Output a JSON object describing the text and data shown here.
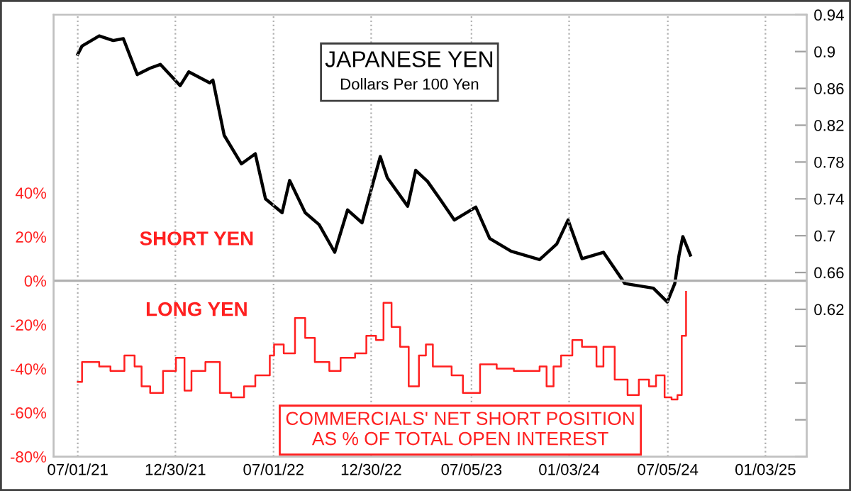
{
  "chart_data": {
    "type": "line",
    "title": "JAPANESE YEN",
    "subtitle": "Dollars Per 100 Yen",
    "annotations": [
      "SHORT YEN",
      "LONG YEN",
      "COMMERCIALS' NET SHORT POSITION\nAS % OF TOTAL OPEN INTEREST"
    ],
    "series": [
      {
        "color": "#000000",
        "axis": "y2",
        "x": [
          "2021-07-01",
          "2021-07-09",
          "2021-08-10",
          "2021-09-05",
          "2021-09-24",
          "2021-10-20",
          "2021-11-13",
          "2021-12-02",
          "2022-01-08",
          "2022-01-24",
          "2022-03-04",
          "2022-03-10",
          "2022-03-31",
          "2022-05-02",
          "2022-05-28",
          "2022-06-16",
          "2022-07-17",
          "2022-07-31",
          "2022-08-29",
          "2022-09-24",
          "2022-10-23",
          "2022-11-16",
          "2022-12-13",
          "2023-01-16",
          "2023-01-29",
          "2023-03-08",
          "2023-03-23",
          "2023-04-14",
          "2023-05-07",
          "2023-06-03",
          "2023-07-13",
          "2023-08-08",
          "2023-09-17",
          "2023-11-09",
          "2023-12-11",
          "2024-01-01",
          "2024-01-27",
          "2024-03-07",
          "2024-04-16",
          "2024-06-08",
          "2024-07-04",
          "2024-07-18",
          "2024-07-26",
          "2024-08-02",
          "2024-08-16"
        ],
        "values": [
          0.897,
          0.906,
          0.917,
          0.912,
          0.914,
          0.875,
          0.882,
          0.886,
          0.863,
          0.878,
          0.866,
          0.869,
          0.809,
          0.778,
          0.789,
          0.74,
          0.725,
          0.76,
          0.725,
          0.712,
          0.682,
          0.728,
          0.714,
          0.786,
          0.763,
          0.732,
          0.771,
          0.759,
          0.74,
          0.717,
          0.731,
          0.697,
          0.683,
          0.674,
          0.691,
          0.717,
          0.675,
          0.682,
          0.648,
          0.643,
          0.628,
          0.648,
          0.679,
          0.699,
          0.679
        ]
      },
      {
        "color": "#ff2020",
        "type": "step",
        "x": [
          "2021-07-01",
          "2021-07-09",
          "2021-08-10",
          "2021-08-31",
          "2021-09-26",
          "2021-10-15",
          "2021-10-28",
          "2021-11-13",
          "2021-12-07",
          "2021-12-31",
          "2022-01-16",
          "2022-01-29",
          "2022-02-24",
          "2022-03-23",
          "2022-04-13",
          "2022-05-07",
          "2022-05-28",
          "2022-06-24",
          "2022-07-02",
          "2022-07-20",
          "2022-08-10",
          "2022-08-29",
          "2022-09-16",
          "2022-10-13",
          "2022-11-03",
          "2022-11-30",
          "2022-12-21",
          "2023-01-08",
          "2023-01-22",
          "2023-02-06",
          "2023-02-22",
          "2023-03-10",
          "2023-03-29",
          "2023-04-11",
          "2023-04-24",
          "2023-05-29",
          "2023-06-19",
          "2023-07-21",
          "2023-08-21",
          "2023-09-22",
          "2023-11-09",
          "2023-11-22",
          "2023-12-05",
          "2023-12-19",
          "2024-01-09",
          "2024-01-27",
          "2024-02-23",
          "2024-03-07",
          "2024-03-28",
          "2024-04-21",
          "2024-05-12",
          "2024-05-31",
          "2024-06-13",
          "2024-06-29",
          "2024-07-12",
          "2024-07-23",
          "2024-07-31",
          "2024-08-08"
        ],
        "values": [
          -46,
          -37,
          -39,
          -41,
          -34,
          -39,
          -48,
          -51,
          -41,
          -35,
          -50,
          -41,
          -37,
          -51,
          -53,
          -48,
          -43,
          -34,
          -29,
          -33,
          -17,
          -26,
          -37,
          -41,
          -35,
          -33,
          -25,
          -27,
          -10,
          -21,
          -30,
          -48,
          -34,
          -29,
          -39,
          -43,
          -51,
          -38,
          -40,
          -41,
          -39,
          -48,
          -39,
          -34,
          -27,
          -30,
          -39,
          -30,
          -45,
          -52,
          -45,
          -48,
          -43,
          -53,
          -54,
          -52,
          -25,
          -5
        ]
      }
    ],
    "xlim": [
      "2021-05-17",
      "2025-03-21"
    ],
    "xticks": [
      {
        "value": "2021-07-01",
        "label": "07/01/21"
      },
      {
        "value": "2021-12-30",
        "label": "12/30/21"
      },
      {
        "value": "2022-07-01",
        "label": "07/01/22"
      },
      {
        "value": "2022-12-30",
        "label": "12/30/22"
      },
      {
        "value": "2023-07-05",
        "label": "07/05/23"
      },
      {
        "value": "2024-01-03",
        "label": "01/03/24"
      },
      {
        "value": "2024-07-05",
        "label": "07/05/24"
      },
      {
        "value": "2025-01-03",
        "label": "01/03/25"
      }
    ],
    "ylim": [
      -80,
      121
    ],
    "yticks": [
      {
        "value": -80,
        "label": "-80%"
      },
      {
        "value": -60,
        "label": "-60%"
      },
      {
        "value": -40,
        "label": "-40%"
      },
      {
        "value": -20,
        "label": "-20%"
      },
      {
        "value": 0,
        "label": "0%"
      },
      {
        "value": 20,
        "label": "20%"
      },
      {
        "value": 40,
        "label": "40%"
      }
    ],
    "y2lim": [
      0.46,
      0.94
    ],
    "y2ticks": [
      {
        "value": 0.46,
        "label": null
      },
      {
        "value": 0.5,
        "label": null
      },
      {
        "value": 0.54,
        "label": null
      },
      {
        "value": 0.58,
        "label": null
      },
      0.62,
      0.66,
      0.7,
      0.74,
      0.78,
      0.82,
      0.86,
      0.9,
      0.94
    ],
    "ref_lines": [
      {
        "axis": "y",
        "value": 0,
        "color": "#b0b0b0"
      }
    ],
    "grid": "x",
    "line_style": "solid",
    "legend": false
  }
}
